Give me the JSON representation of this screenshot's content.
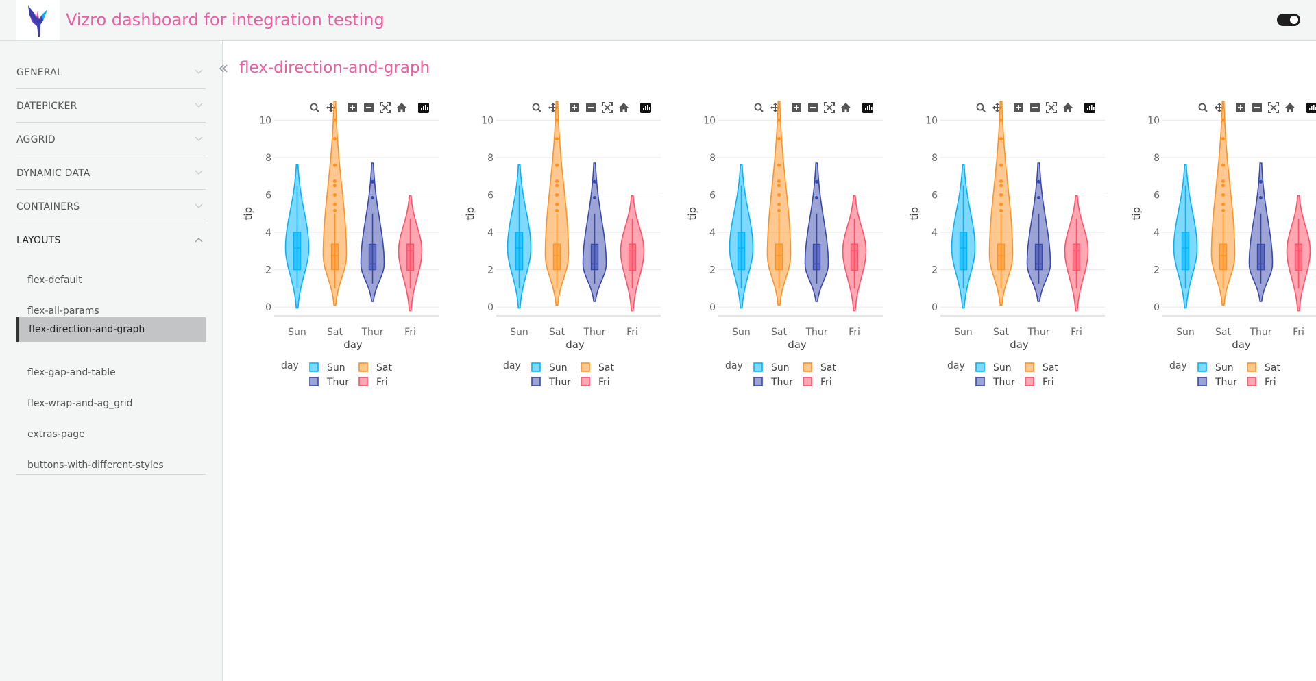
{
  "header": {
    "title": "Vizro dashboard for integration testing"
  },
  "sidebar": {
    "accordions": [
      {
        "label": "GENERAL",
        "expanded": false
      },
      {
        "label": "DATEPICKER",
        "expanded": false
      },
      {
        "label": "AGGRID",
        "expanded": false
      },
      {
        "label": "DYNAMIC DATA",
        "expanded": false
      },
      {
        "label": "CONTAINERS",
        "expanded": false
      },
      {
        "label": "LAYOUTS",
        "expanded": true
      }
    ],
    "items": [
      "flex-default",
      "flex-all-params",
      "flex-direction-and-graph",
      "flex-gap-and-table",
      "flex-wrap-and-ag_grid",
      "extras-page",
      "buttons-with-different-styles"
    ],
    "selected_index": 2
  },
  "page": {
    "title": "flex-direction-and-graph"
  },
  "colors": {
    "accent": "#ee5e9f",
    "Sun": "#00b4ff",
    "Sat": "#ff9222",
    "Thur": "#3949ab",
    "Fri": "#ff5267"
  },
  "chart_data": {
    "type": "violin",
    "count": 5,
    "categories": [
      "Sun",
      "Sat",
      "Thur",
      "Fri"
    ],
    "xlabel": "day",
    "ylabel": "tip",
    "yticks": [
      0,
      2,
      4,
      6,
      8,
      10
    ],
    "ylim": [
      -0.8,
      11
    ],
    "legend_title": "day",
    "legend_placement": "bottom",
    "series": [
      {
        "name": "Sun",
        "min": 1.01,
        "q1": 2.0,
        "median": 3.15,
        "q3": 4.0,
        "max": 6.5,
        "range": [
          -0.05,
          7.6
        ],
        "outliers": []
      },
      {
        "name": "Sat",
        "min": 1.0,
        "q1": 2.0,
        "median": 2.75,
        "q3": 3.37,
        "max": 5.0,
        "range": [
          0.1,
          11
        ],
        "outliers": [
          5.16,
          5.5,
          6.0,
          6.5,
          6.73,
          7.58,
          9.0,
          10.0
        ]
      },
      {
        "name": "Thur",
        "min": 1.25,
        "q1": 2.0,
        "median": 2.3,
        "q3": 3.36,
        "max": 5.0,
        "range": [
          0.3,
          7.7
        ],
        "outliers": [
          5.85,
          6.7
        ]
      },
      {
        "name": "Fri",
        "min": 1.0,
        "q1": 1.96,
        "median": 3.0,
        "q3": 3.37,
        "max": 4.73,
        "range": [
          -0.2,
          5.95
        ],
        "outliers": []
      }
    ]
  }
}
